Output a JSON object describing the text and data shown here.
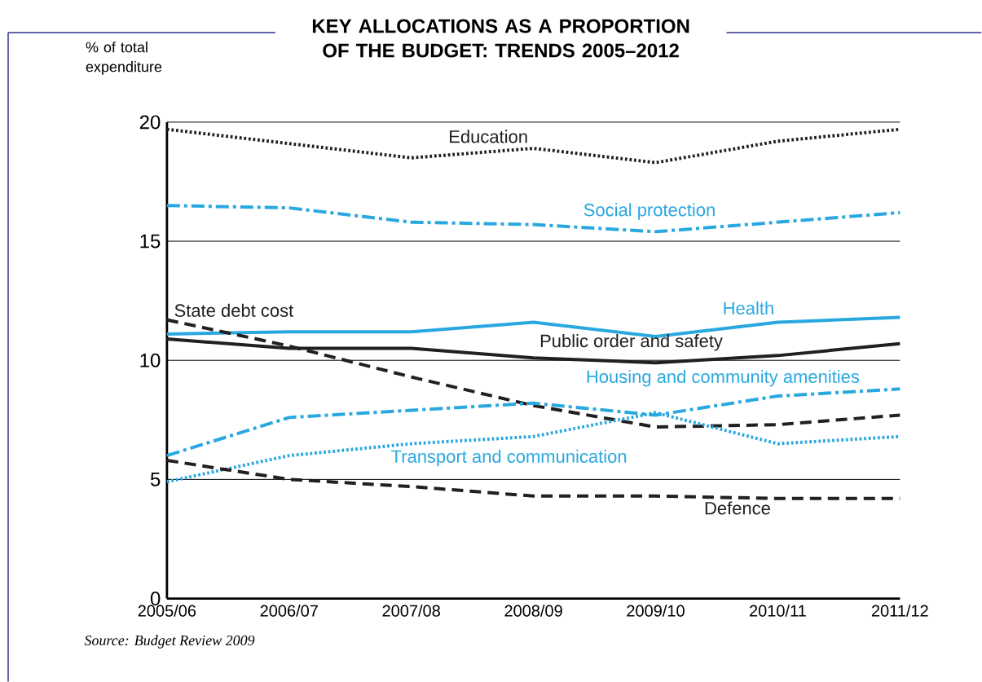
{
  "chart_data": {
    "type": "line",
    "title": "KEY ALLOCATIONS AS A PROPORTION OF THE BUDGET: TRENDS 2005–2012",
    "ylabel": "% of total expenditure",
    "categories": [
      "2005/06",
      "2006/07",
      "2007/08",
      "2008/09",
      "2009/10",
      "2010/11",
      "2011/12"
    ],
    "ylim": [
      0,
      20
    ],
    "yticks": [
      0,
      5,
      10,
      15,
      20
    ],
    "grid": "y",
    "legend": false,
    "marker": "none",
    "series": [
      {
        "name": "Education",
        "color": "#231f20",
        "line_style": "dotted",
        "values": [
          19.7,
          19.1,
          18.5,
          18.9,
          18.3,
          19.2,
          19.7
        ]
      },
      {
        "name": "Social protection",
        "color": "#29a8e0",
        "line_style": "dash-dot",
        "values": [
          16.5,
          16.4,
          15.8,
          15.7,
          15.4,
          15.8,
          16.2
        ]
      },
      {
        "name": "Health",
        "color": "#29a8e0",
        "line_style": "solid",
        "values": [
          11.1,
          11.2,
          11.2,
          11.6,
          11.0,
          11.6,
          11.8
        ]
      },
      {
        "name": "Public order and safety",
        "color": "#231f20",
        "line_style": "solid",
        "values": [
          10.9,
          10.5,
          10.5,
          10.1,
          9.9,
          10.2,
          10.7
        ]
      },
      {
        "name": "State debt cost",
        "color": "#231f20",
        "line_style": "dashed",
        "values": [
          11.7,
          10.6,
          9.3,
          8.1,
          7.2,
          7.3,
          7.7
        ]
      },
      {
        "name": "Housing and community amenities",
        "color": "#29a8e0",
        "line_style": "dash-dot",
        "values": [
          6.0,
          7.6,
          7.9,
          8.2,
          7.7,
          8.5,
          8.8
        ]
      },
      {
        "name": "Transport and communication",
        "color": "#29a8e0",
        "line_style": "dotted",
        "values": [
          4.9,
          6.0,
          6.5,
          6.8,
          7.8,
          6.5,
          6.8
        ]
      },
      {
        "name": "Defence",
        "color": "#231f20",
        "line_style": "dashed",
        "values": [
          5.8,
          5.0,
          4.7,
          4.3,
          4.3,
          4.2,
          4.2
        ]
      }
    ],
    "annotations": [
      "Source: Budget Review 2009"
    ]
  }
}
